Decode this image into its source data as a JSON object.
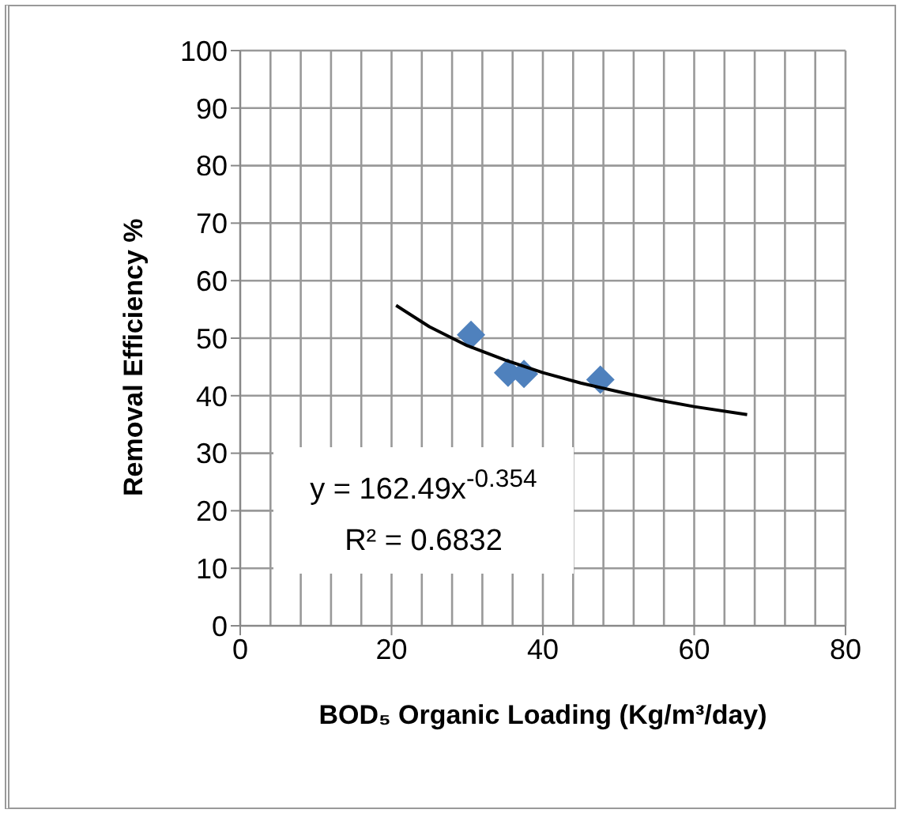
{
  "chart_data": {
    "type": "scatter",
    "xlabel": "BOD₅ Organic Loading (Kg/m³/day)",
    "ylabel": "Removal Efficiency %",
    "xlim": [
      0,
      80
    ],
    "xticks": [
      0,
      20,
      40,
      60,
      80
    ],
    "ylim": [
      0,
      100
    ],
    "yticks": [
      0,
      10,
      20,
      30,
      40,
      50,
      60,
      70,
      80,
      90,
      100
    ],
    "grid": true,
    "legend": false,
    "marker": "diamond",
    "annotations": [
      "y = 162.49x$^{-0.354}$",
      "R² = 0.6832"
    ],
    "series": [
      {
        "color": "#4f81bd",
        "x": [
          30.5,
          35.4,
          37.5,
          47.6
        ],
        "values": [
          50.6,
          44.0,
          43.8,
          42.8
        ]
      },
      {
        "type": "line",
        "color": "#000000",
        "marker": "none",
        "line_style": "solid",
        "x": [
          20.6,
          25,
          30,
          35,
          40,
          45,
          50,
          55,
          60,
          67
        ],
        "values": [
          55.7,
          52.0,
          48.7,
          46.2,
          44.0,
          42.2,
          40.7,
          39.3,
          38.1,
          36.7
        ]
      }
    ]
  }
}
